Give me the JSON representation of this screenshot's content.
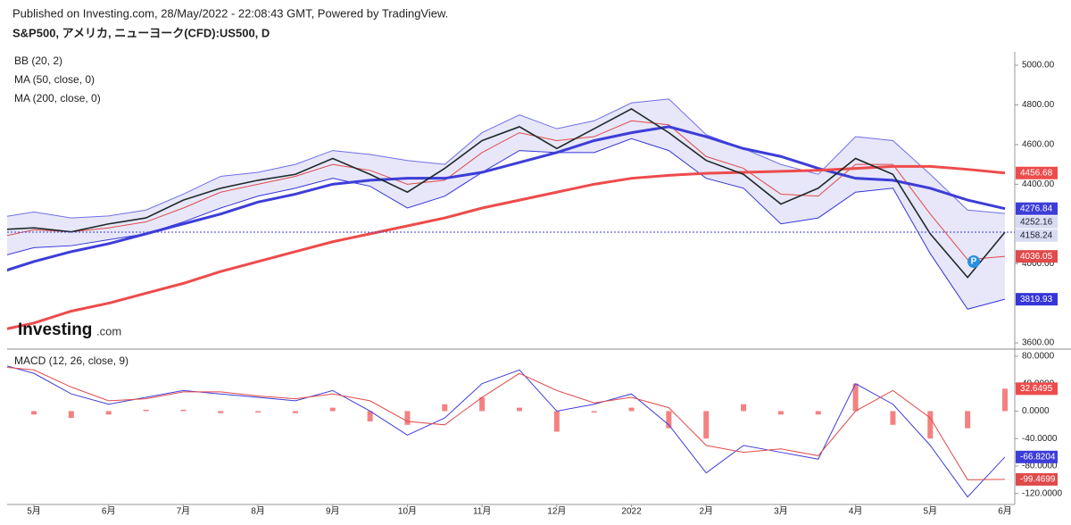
{
  "chart_data": [
    {
      "type": "line",
      "subtitle": "Published on Investing.com, 28/May/2022 - 22:08:43 GMT, Powered by TradingView.",
      "title": "S&P500, アメリカ, ニューヨーク(CFD):US500, D",
      "legend": [
        "BB (20, 2)",
        "MA (50, close, 0)",
        "MA (200, close, 0)"
      ],
      "categories": [
        null,
        "5月",
        null,
        "6月",
        null,
        "7月",
        null,
        "8月",
        null,
        "9月",
        null,
        "10月",
        null,
        "11月",
        null,
        "12月",
        null,
        "2022",
        null,
        "2月",
        null,
        "3月",
        null,
        "4月",
        null,
        "5月",
        null,
        "6月"
      ],
      "ylim": [
        3573,
        5068
      ],
      "yticks": [
        {
          "value": 5000,
          "label": "5000.00"
        },
        {
          "value": 4800,
          "label": "4800.00"
        },
        {
          "value": 4600,
          "label": "4600.00"
        },
        {
          "value": 4400,
          "label": "4400.00"
        },
        {
          "value": 4000,
          "label": "4000.00"
        },
        {
          "value": 3600,
          "label": "3600.00"
        }
      ],
      "series": [
        {
          "style": "band-upper",
          "color": "#6f6fe8",
          "values": [
            4230,
            4260,
            4230,
            4240,
            4270,
            4350,
            4440,
            4460,
            4500,
            4570,
            4550,
            4520,
            4500,
            4660,
            4750,
            4680,
            4720,
            4810,
            4830,
            4650,
            4580,
            4500,
            4450,
            4640,
            4620,
            4450,
            4270,
            4252.16
          ]
        },
        {
          "style": "band-lower",
          "color": "#3535d8",
          "values": [
            4030,
            4080,
            4090,
            4120,
            4150,
            4210,
            4280,
            4340,
            4380,
            4430,
            4390,
            4280,
            4340,
            4460,
            4570,
            4560,
            4560,
            4630,
            4570,
            4430,
            4380,
            4200,
            4230,
            4360,
            4380,
            4050,
            3770,
            3819.93
          ]
        },
        {
          "style": "thin",
          "color": "#e04a4a",
          "values": [
            4130,
            4170,
            4160,
            4180,
            4210,
            4280,
            4360,
            4400,
            4440,
            4500,
            4470,
            4400,
            4420,
            4560,
            4660,
            4620,
            4640,
            4720,
            4700,
            4540,
            4480,
            4350,
            4340,
            4500,
            4500,
            4250,
            4020,
            4036.05
          ]
        },
        {
          "style": "thick",
          "color": "#3d3dd9",
          "values": [
            3950,
            4010,
            4060,
            4100,
            4150,
            4200,
            4250,
            4310,
            4350,
            4400,
            4420,
            4430,
            4430,
            4460,
            4510,
            4560,
            4620,
            4660,
            4690,
            4640,
            4580,
            4540,
            4480,
            4430,
            4420,
            4380,
            4320,
            4276.84
          ]
        },
        {
          "style": "thick",
          "color": "#ee4b4b",
          "values": [
            3660,
            3700,
            3760,
            3800,
            3850,
            3900,
            3960,
            4010,
            4060,
            4110,
            4150,
            4190,
            4230,
            4280,
            4320,
            4360,
            4400,
            4430,
            4445,
            4455,
            4460,
            4465,
            4470,
            4480,
            4490,
            4490,
            4475,
            4456.68
          ]
        },
        {
          "style": "price",
          "color": "#1f2a2a",
          "values": [
            4170,
            4180,
            4160,
            4200,
            4230,
            4320,
            4380,
            4420,
            4450,
            4530,
            4450,
            4360,
            4480,
            4620,
            4690,
            4580,
            4680,
            4780,
            4660,
            4520,
            4450,
            4300,
            4380,
            4530,
            4450,
            4150,
            3930,
            4158.24
          ]
        }
      ]
    },
    {
      "type": "line",
      "legend": [
        "MACD (12, 26, close, 9)"
      ],
      "ylim": [
        -136,
        89
      ],
      "yticks": [
        {
          "value": 80,
          "label": "80.0000"
        },
        {
          "value": 40,
          "label": "40.0000"
        },
        {
          "value": 0,
          "label": "0.0000"
        },
        {
          "value": -40,
          "label": "-40.0000"
        },
        {
          "value": -80,
          "label": "-80.0000"
        },
        {
          "value": -120,
          "label": "-120.0000"
        }
      ],
      "series": [
        {
          "style": "histogram",
          "color": "#ee4b4b",
          "values": [
            5,
            -5,
            -10,
            -5,
            2,
            2,
            -3,
            -2,
            -3,
            5,
            -15,
            -20,
            10,
            20,
            5,
            -30,
            -2,
            5,
            -25,
            -40,
            10,
            -5,
            -5,
            40,
            -20,
            -40,
            -25,
            32.6495
          ]
        },
        {
          "style": "thin",
          "color": "#3d3dd9",
          "values": [
            70,
            55,
            25,
            10,
            20,
            30,
            25,
            20,
            15,
            30,
            0,
            -35,
            -10,
            40,
            60,
            0,
            10,
            25,
            -20,
            -90,
            -50,
            -60,
            -70,
            40,
            10,
            -50,
            -125,
            -66.8204
          ]
        },
        {
          "style": "thin",
          "color": "#e04a4a",
          "values": [
            65,
            60,
            35,
            15,
            18,
            28,
            28,
            22,
            18,
            25,
            15,
            -15,
            -20,
            20,
            55,
            30,
            12,
            20,
            5,
            -50,
            -60,
            -55,
            -65,
            0,
            30,
            -10,
            -100,
            -99.4699
          ]
        }
      ]
    }
  ],
  "logo": {
    "text": "Investing",
    "suffix": ".com"
  }
}
